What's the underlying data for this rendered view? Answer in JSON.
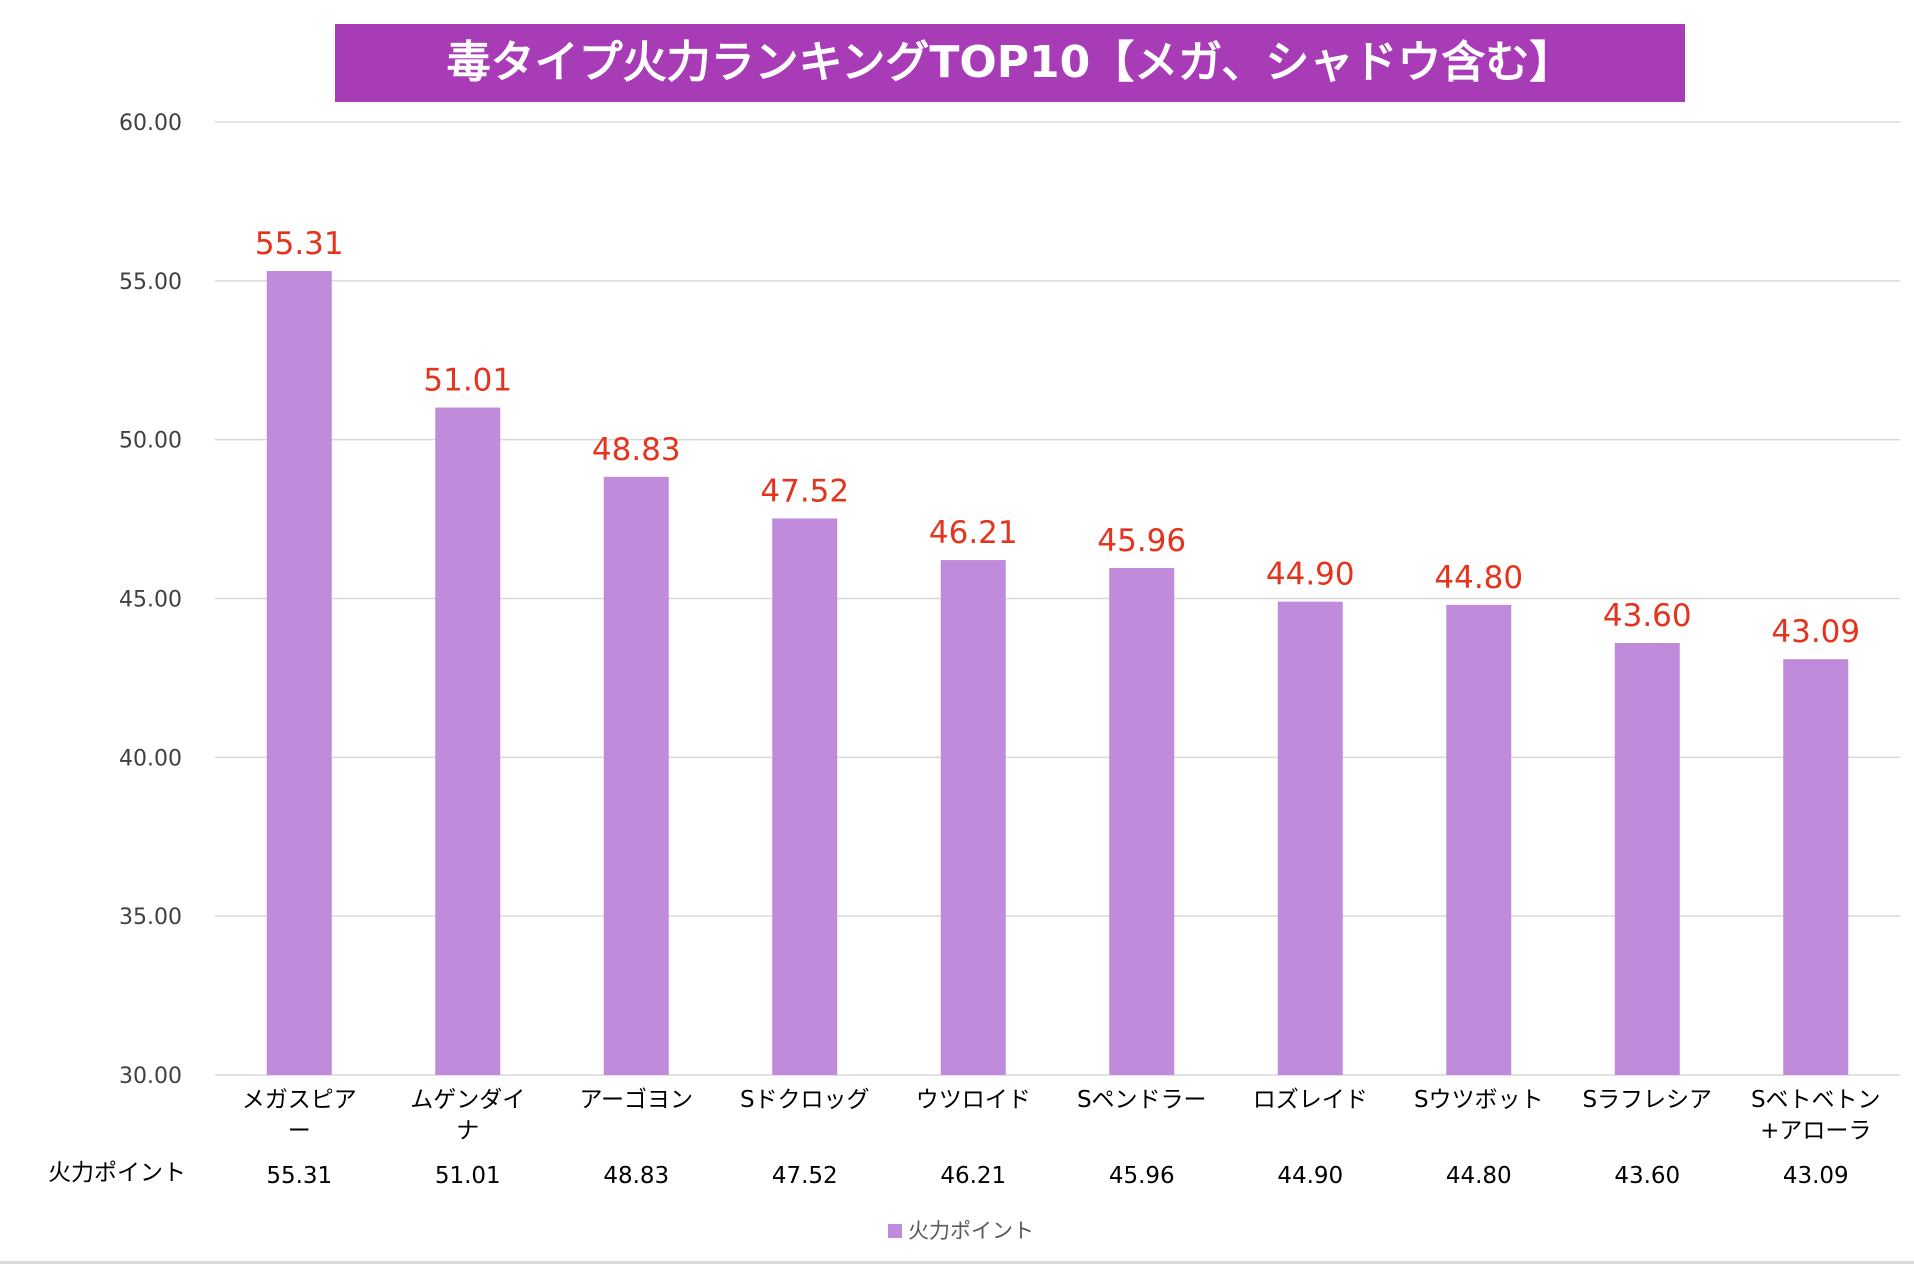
{
  "chart_data": {
    "type": "bar",
    "title": "毒タイプ火力ランキングTOP10【メガ、シャドウ含む】",
    "title_bg_color": "#a83bb6",
    "title_text_color": "#ffffff",
    "bar_color": "#c08bdb",
    "data_label_color": "#e4341e",
    "grid_color": "#d9d9d9",
    "grid": true,
    "ylim": [
      30,
      60
    ],
    "yticks": [
      "30.00",
      "35.00",
      "40.00",
      "45.00",
      "50.00",
      "55.00",
      "60.00"
    ],
    "xlabel": "",
    "ylabel": "",
    "categories": [
      [
        "メガスピア",
        "ー"
      ],
      [
        "ムゲンダイ",
        "ナ"
      ],
      [
        "アーゴヨン"
      ],
      [
        "Sドクロッグ"
      ],
      [
        "ウツロイド"
      ],
      [
        "Sペンドラー"
      ],
      [
        "ロズレイド"
      ],
      [
        "Sウツボット"
      ],
      [
        "Sラフレシア"
      ],
      [
        "Sベトベトン",
        "+アローラ"
      ]
    ],
    "series": [
      {
        "name": "火力ポイント",
        "values": [
          55.31,
          51.01,
          48.83,
          47.52,
          46.21,
          45.96,
          44.9,
          44.8,
          43.6,
          43.09
        ],
        "labels": [
          "55.31",
          "51.01",
          "48.83",
          "47.52",
          "46.21",
          "45.96",
          "44.90",
          "44.80",
          "43.60",
          "43.09"
        ]
      }
    ],
    "data_table": {
      "row_label": "火力ポイント",
      "values": [
        "55.31",
        "51.01",
        "48.83",
        "47.52",
        "46.21",
        "45.96",
        "44.90",
        "44.80",
        "43.60",
        "43.09"
      ]
    },
    "legend": {
      "position": "bottom",
      "entries": [
        "火力ポイント"
      ]
    }
  }
}
